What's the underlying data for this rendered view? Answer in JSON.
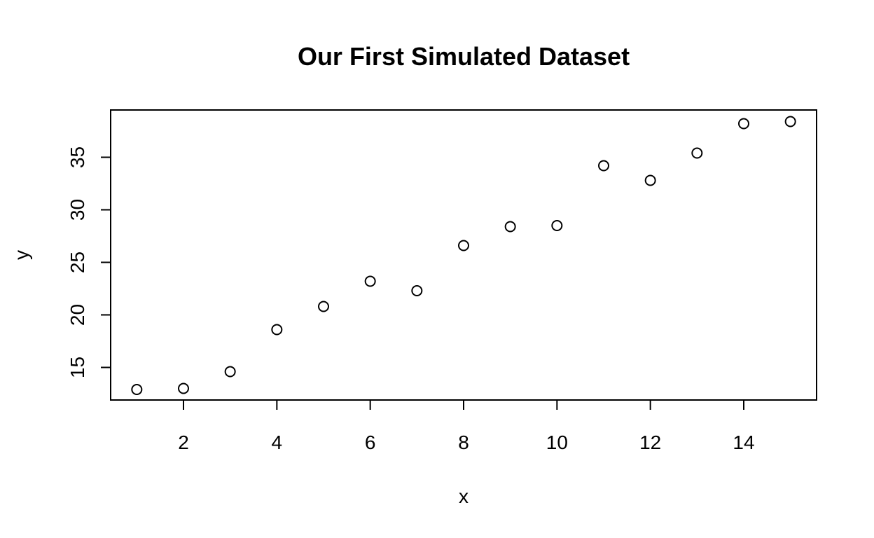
{
  "chart_data": {
    "type": "scatter",
    "title": "Our First Simulated Dataset",
    "xlabel": "x",
    "ylabel": "y",
    "xlim": [
      0.44,
      15.56
    ],
    "ylim": [
      11.9,
      39.5
    ],
    "xticks": [
      2,
      4,
      6,
      8,
      10,
      12,
      14
    ],
    "yticks": [
      15,
      20,
      25,
      30,
      35
    ],
    "grid": false,
    "legend": "none",
    "point_style": "open-circle",
    "x": [
      1,
      2,
      3,
      4,
      5,
      6,
      7,
      8,
      9,
      10,
      11,
      12,
      13,
      14,
      15
    ],
    "y": [
      12.9,
      13.0,
      14.6,
      18.6,
      20.8,
      23.2,
      22.3,
      26.6,
      28.4,
      28.5,
      34.2,
      32.8,
      35.4,
      38.2,
      38.4
    ]
  }
}
